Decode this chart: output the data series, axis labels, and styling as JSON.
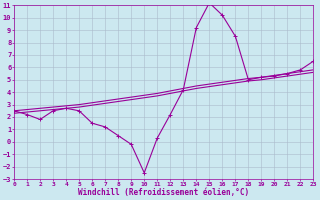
{
  "xlabel": "Windchill (Refroidissement éolien,°C)",
  "bg_color": "#cce8f0",
  "line_color": "#990099",
  "grid_color": "#aabbcc",
  "xlim": [
    0,
    23
  ],
  "ylim": [
    -3,
    11
  ],
  "xticks": [
    0,
    1,
    2,
    3,
    4,
    5,
    6,
    7,
    8,
    9,
    10,
    11,
    12,
    13,
    14,
    15,
    16,
    17,
    18,
    19,
    20,
    21,
    22,
    23
  ],
  "yticks": [
    -3,
    -2,
    -1,
    0,
    1,
    2,
    3,
    4,
    5,
    6,
    7,
    8,
    9,
    10,
    11
  ],
  "line1_x": [
    0,
    1,
    2,
    3,
    4,
    5,
    6,
    7,
    8,
    9,
    10,
    11,
    12,
    13,
    14,
    15,
    16,
    17,
    18,
    19,
    20,
    21,
    22,
    23
  ],
  "line1_y": [
    2.5,
    2.2,
    1.8,
    2.5,
    2.7,
    2.5,
    1.5,
    1.2,
    0.5,
    -0.2,
    -2.5,
    0.3,
    2.2,
    4.2,
    9.2,
    11.2,
    10.2,
    8.5,
    5.0,
    5.2,
    5.3,
    5.5,
    5.8,
    6.5
  ],
  "line2_x": [
    0,
    1,
    2,
    3,
    4,
    5,
    6,
    7,
    8,
    9,
    10,
    11,
    12,
    13,
    14,
    15,
    16,
    17,
    18,
    19,
    20,
    21,
    22,
    23
  ],
  "line2_y": [
    2.5,
    2.6,
    2.7,
    2.8,
    2.9,
    3.0,
    3.15,
    3.3,
    3.45,
    3.6,
    3.75,
    3.9,
    4.1,
    4.3,
    4.5,
    4.65,
    4.8,
    4.95,
    5.1,
    5.2,
    5.35,
    5.5,
    5.65,
    5.8
  ],
  "line3_x": [
    0,
    1,
    2,
    3,
    4,
    5,
    6,
    7,
    8,
    9,
    10,
    11,
    12,
    13,
    14,
    15,
    16,
    17,
    18,
    19,
    20,
    21,
    22,
    23
  ],
  "line3_y": [
    2.3,
    2.4,
    2.5,
    2.6,
    2.7,
    2.8,
    2.95,
    3.1,
    3.25,
    3.4,
    3.55,
    3.7,
    3.9,
    4.1,
    4.3,
    4.45,
    4.6,
    4.75,
    4.9,
    5.0,
    5.15,
    5.3,
    5.45,
    5.6
  ]
}
